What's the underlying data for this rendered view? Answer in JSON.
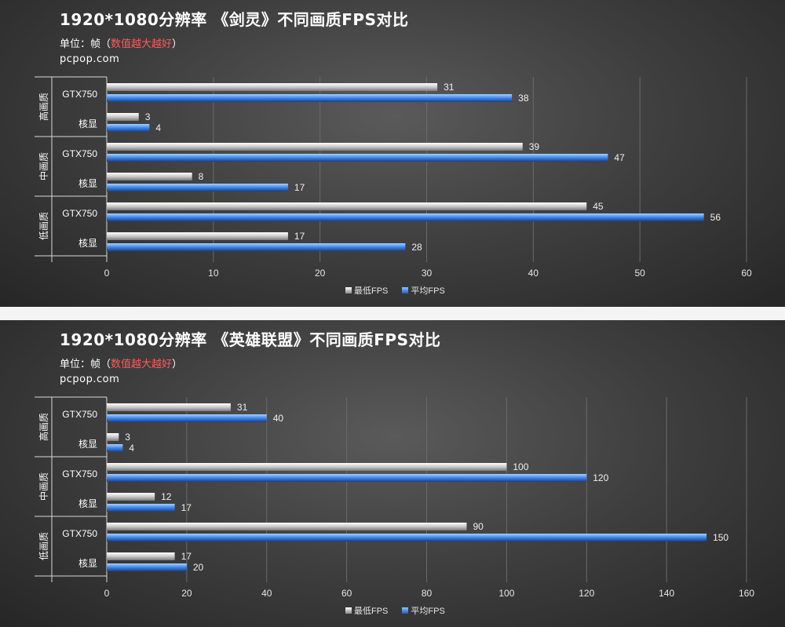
{
  "charts": [
    {
      "title": "1920*1080分辨率 《剑灵》不同画质FPS对比",
      "unit_label": "单位：帧（",
      "unit_note": "数值越大越好",
      "unit_close": "）",
      "site": "pcpop.com"
    },
    {
      "title": "1920*1080分辨率 《英雄联盟》不同画质FPS对比",
      "unit_label": "单位：帧（",
      "unit_note": "数值越大越好",
      "unit_close": "）",
      "site": "pcpop.com"
    }
  ],
  "legend": {
    "min_label": "最低FPS",
    "avg_label": "平均FPS"
  },
  "colors": {
    "min_series": "#c9c9c9",
    "avg_series": "#3f86e6",
    "grid": "#6a6a6a"
  },
  "chart_data": [
    {
      "type": "bar",
      "orientation": "horizontal",
      "title": "1920*1080分辨率 《剑灵》不同画质FPS对比",
      "groups": [
        "高画质",
        "中画质",
        "低画质"
      ],
      "categories": [
        "GTX750",
        "核显"
      ],
      "series": [
        {
          "name": "最低FPS",
          "values": [
            [
              31,
              3
            ],
            [
              39,
              8
            ],
            [
              45,
              17
            ]
          ]
        },
        {
          "name": "平均FPS",
          "values": [
            [
              38,
              4
            ],
            [
              47,
              17
            ],
            [
              56,
              28
            ]
          ]
        }
      ],
      "xlim": [
        0,
        60
      ],
      "xticks": [
        0,
        10,
        20,
        30,
        40,
        50,
        60
      ],
      "grid": true,
      "legend_position": "bottom"
    },
    {
      "type": "bar",
      "orientation": "horizontal",
      "title": "1920*1080分辨率 《英雄联盟》不同画质FPS对比",
      "groups": [
        "高画质",
        "中画质",
        "低画质"
      ],
      "categories": [
        "GTX750",
        "核显"
      ],
      "series": [
        {
          "name": "最低FPS",
          "values": [
            [
              31,
              3
            ],
            [
              100,
              12
            ],
            [
              90,
              17
            ]
          ]
        },
        {
          "name": "平均FPS",
          "values": [
            [
              40,
              4
            ],
            [
              120,
              17
            ],
            [
              150,
              20
            ]
          ]
        }
      ],
      "xlim": [
        0,
        160
      ],
      "xticks": [
        0,
        20,
        40,
        60,
        80,
        100,
        120,
        140,
        160
      ],
      "grid": true,
      "legend_position": "bottom"
    }
  ]
}
